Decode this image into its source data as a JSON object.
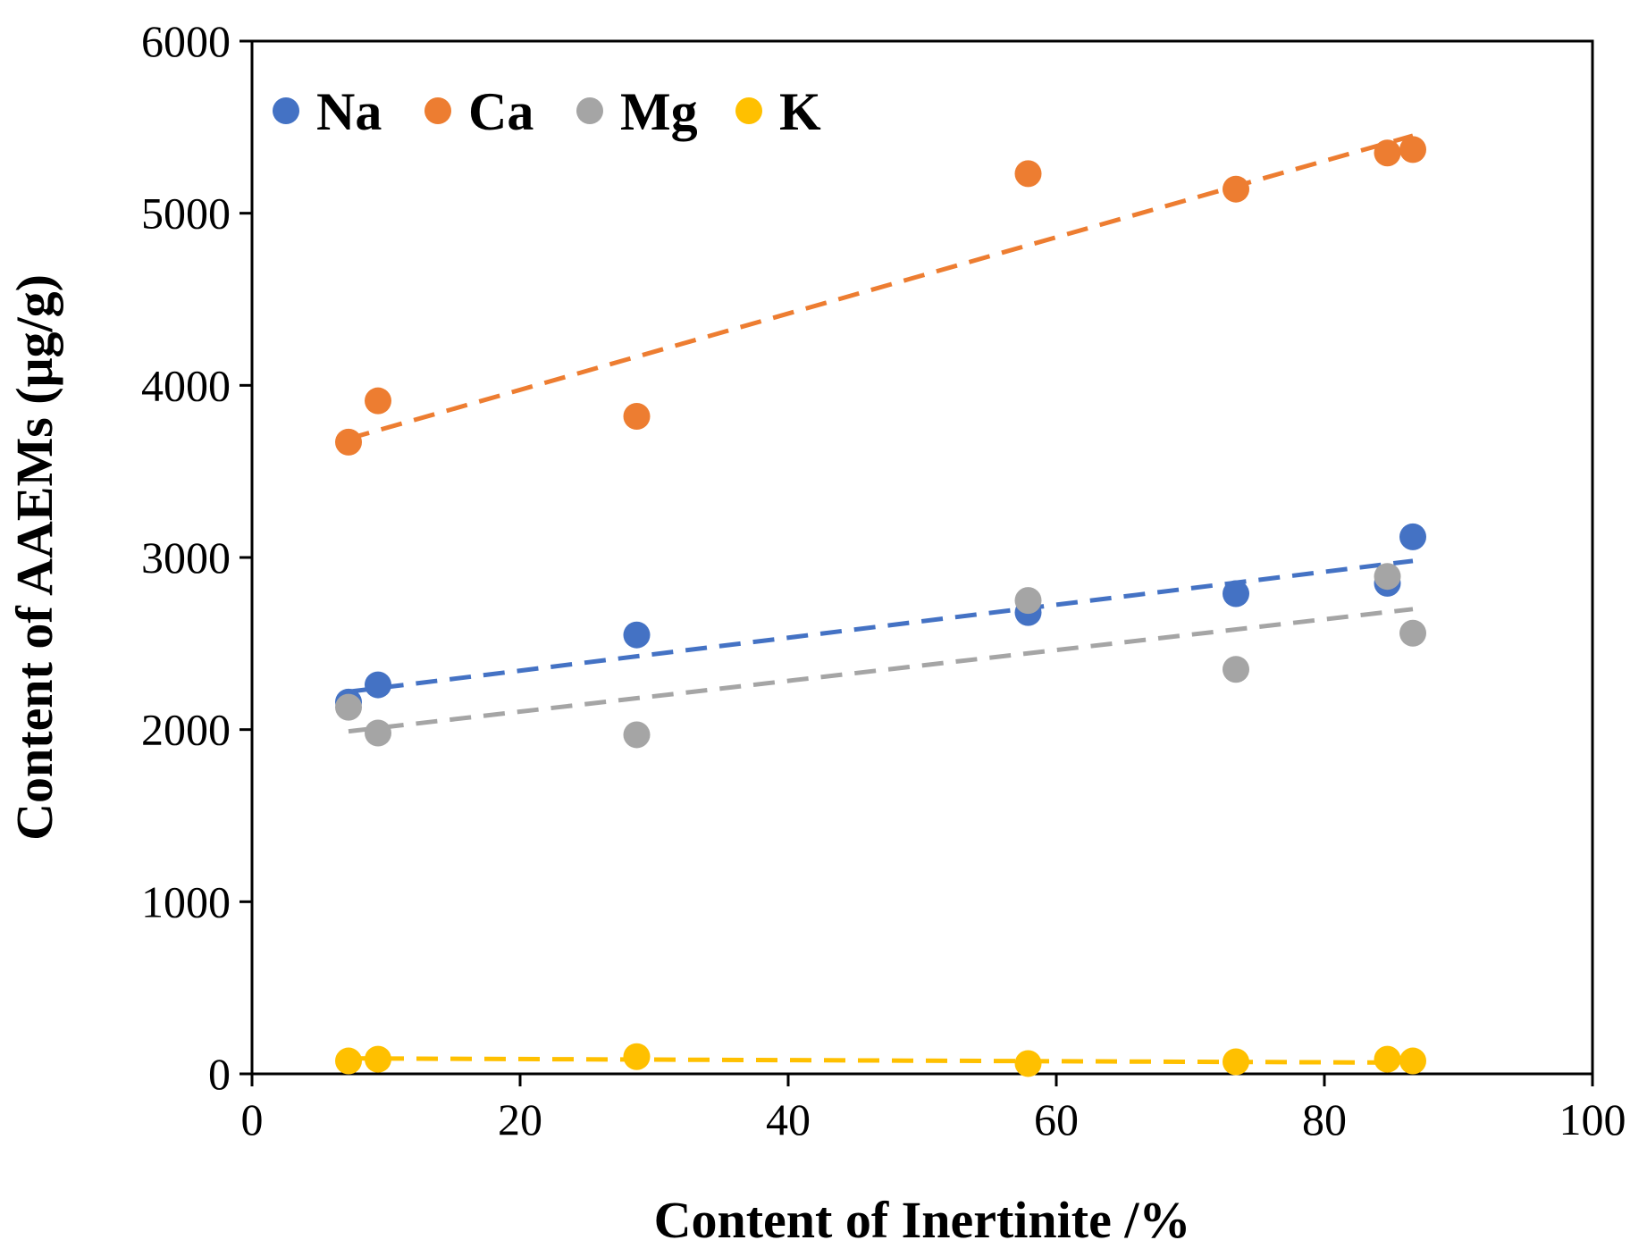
{
  "chart_data": {
    "type": "scatter",
    "title": "",
    "xlabel": "Content of Inertinite /%",
    "ylabel": "Content of AAEMs (μg/g)",
    "xlim": [
      0,
      100
    ],
    "ylim": [
      0,
      6000
    ],
    "xticks": [
      "0",
      "20",
      "40",
      "60",
      "80",
      "100"
    ],
    "yticks": [
      "0",
      "1000",
      "2000",
      "3000",
      "4000",
      "5000",
      "6000"
    ],
    "grid": false,
    "legend_position": "top-left",
    "trendlines": "linear, dashed",
    "series": [
      {
        "name": "Na",
        "color": "#4472C4",
        "x": [
          7.2,
          9.4,
          28.7,
          57.9,
          73.4,
          84.7,
          86.6
        ],
        "y": [
          2160,
          2260,
          2550,
          2680,
          2790,
          2850,
          3120
        ],
        "trend": [
          [
            7.2,
            2220
          ],
          [
            86.6,
            2980
          ]
        ]
      },
      {
        "name": "Ca",
        "color": "#ED7D31",
        "x": [
          7.2,
          9.4,
          28.7,
          57.9,
          73.4,
          84.7,
          86.6
        ],
        "y": [
          3670,
          3910,
          3820,
          5230,
          5140,
          5350,
          5370
        ],
        "trend": [
          [
            7.2,
            3690
          ],
          [
            86.6,
            5450
          ]
        ]
      },
      {
        "name": "Mg",
        "color": "#A5A5A5",
        "x": [
          7.2,
          9.4,
          28.7,
          57.9,
          73.4,
          84.7,
          86.6
        ],
        "y": [
          2130,
          1980,
          1970,
          2750,
          2350,
          2890,
          2560
        ],
        "trend": [
          [
            7.2,
            1990
          ],
          [
            86.6,
            2700
          ]
        ]
      },
      {
        "name": "K",
        "color": "#FFC000",
        "x": [
          7.2,
          9.4,
          28.7,
          57.9,
          73.4,
          84.7,
          86.6
        ],
        "y": [
          75,
          85,
          100,
          60,
          70,
          85,
          75
        ],
        "trend": [
          [
            7.2,
            90
          ],
          [
            86.6,
            65
          ]
        ]
      }
    ]
  }
}
